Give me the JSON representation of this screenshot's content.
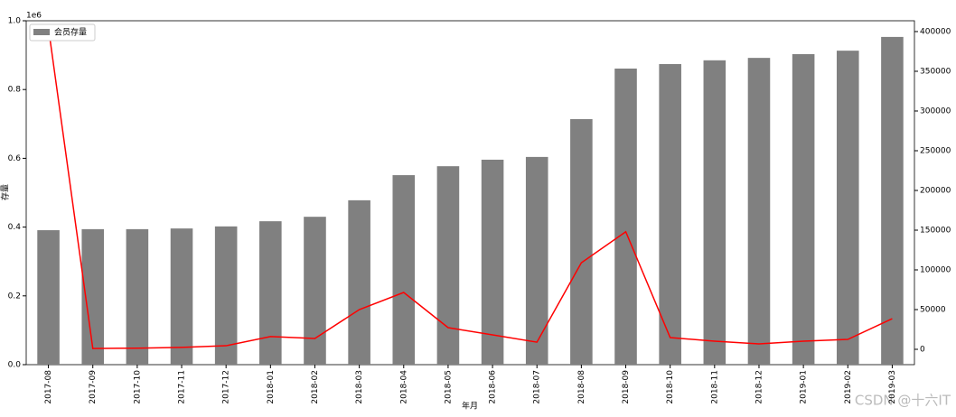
{
  "chart_data": {
    "type": "bar_line",
    "y_offset_label": "1e6",
    "ylabel": "存量",
    "xlabel": "年月",
    "watermark": "CSDN @十六IT",
    "categories": [
      "2017-08",
      "2017-09",
      "2017-10",
      "2017-11",
      "2017-12",
      "2018-01",
      "2018-02",
      "2018-03",
      "2018-04",
      "2018-05",
      "2018-06",
      "2018-07",
      "2018-08",
      "2018-09",
      "2018-10",
      "2018-11",
      "2018-12",
      "2019-01",
      "2019-02",
      "2019-03"
    ],
    "series": [
      {
        "name": "会员存量",
        "color": "#808080",
        "values": [
          0.391,
          0.394,
          0.394,
          0.396,
          0.402,
          0.417,
          0.43,
          0.478,
          0.551,
          0.577,
          0.596,
          0.604,
          0.714,
          0.861,
          0.874,
          0.885,
          0.892,
          0.903,
          0.913,
          0.953
        ]
      },
      {
        "color": "#ff0000",
        "axis": "y2",
        "values": [
          405000,
          1000,
          1500,
          2500,
          4500,
          16000,
          13600,
          50000,
          71600,
          27300,
          18200,
          9000,
          109000,
          148000,
          14800,
          10200,
          6800,
          10200,
          12500,
          38600
        ]
      }
    ],
    "ylim": [
      0,
      1
    ],
    "yticks": [
      {
        "value": 0,
        "label": "0.0"
      },
      0.2,
      0.4,
      0.6,
      0.8,
      {
        "value": 1,
        "label": "1.0"
      }
    ],
    "y2lim": [
      -19300,
      413600
    ],
    "y2ticks": [
      0,
      50000,
      100000,
      150000,
      200000,
      250000,
      300000,
      350000,
      400000
    ],
    "legend": "upper left"
  }
}
